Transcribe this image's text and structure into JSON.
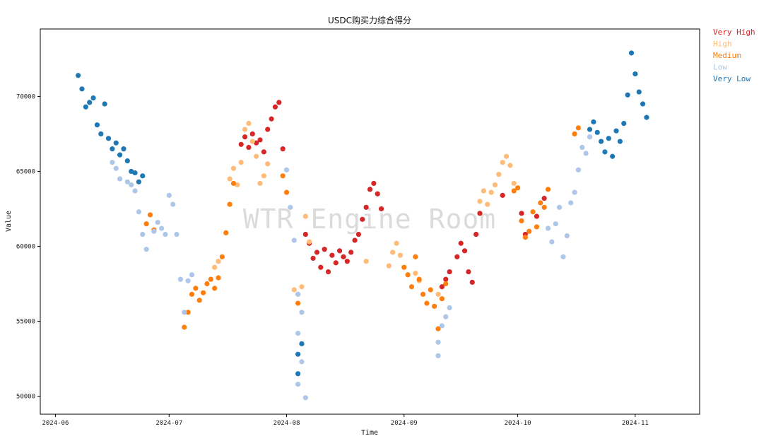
{
  "chart_data": {
    "type": "scatter",
    "title": "USDC购买力综合得分",
    "xlabel": "Time",
    "ylabel": "Value",
    "watermark": "WTR Engine Room",
    "xlim": [
      "2024-05-28",
      "2024-11-18"
    ],
    "ylim": [
      48800,
      74500
    ],
    "x_ticks": [
      "2024-06",
      "2024-07",
      "2024-08",
      "2024-09",
      "2024-10",
      "2024-11"
    ],
    "y_ticks": [
      50000,
      55000,
      60000,
      65000,
      70000
    ],
    "grid": false,
    "legend_position": "outside-top-right",
    "series": [
      {
        "name": "Very High",
        "color": "#d62728",
        "points": [
          [
            "2024-07-20",
            66800
          ],
          [
            "2024-07-21",
            67300
          ],
          [
            "2024-07-22",
            66600
          ],
          [
            "2024-07-23",
            67500
          ],
          [
            "2024-07-24",
            66900
          ],
          [
            "2024-07-25",
            67100
          ],
          [
            "2024-07-26",
            66300
          ],
          [
            "2024-07-27",
            67800
          ],
          [
            "2024-07-28",
            68500
          ],
          [
            "2024-07-29",
            69300
          ],
          [
            "2024-07-30",
            69600
          ],
          [
            "2024-07-31",
            66500
          ],
          [
            "2024-08-06",
            60800
          ],
          [
            "2024-08-07",
            60200
          ],
          [
            "2024-08-08",
            59200
          ],
          [
            "2024-08-09",
            59600
          ],
          [
            "2024-08-10",
            58600
          ],
          [
            "2024-08-11",
            59800
          ],
          [
            "2024-08-12",
            58300
          ],
          [
            "2024-08-13",
            59400
          ],
          [
            "2024-08-14",
            58900
          ],
          [
            "2024-08-15",
            59700
          ],
          [
            "2024-08-16",
            59300
          ],
          [
            "2024-08-17",
            59000
          ],
          [
            "2024-08-18",
            59600
          ],
          [
            "2024-08-19",
            60400
          ],
          [
            "2024-08-20",
            60800
          ],
          [
            "2024-08-21",
            61800
          ],
          [
            "2024-08-22",
            62600
          ],
          [
            "2024-08-23",
            63800
          ],
          [
            "2024-08-24",
            64200
          ],
          [
            "2024-08-25",
            63500
          ],
          [
            "2024-08-26",
            62500
          ],
          [
            "2024-09-11",
            57300
          ],
          [
            "2024-09-12",
            57800
          ],
          [
            "2024-09-13",
            58300
          ],
          [
            "2024-09-15",
            59300
          ],
          [
            "2024-09-16",
            60200
          ],
          [
            "2024-09-17",
            59700
          ],
          [
            "2024-09-18",
            58300
          ],
          [
            "2024-09-19",
            57600
          ],
          [
            "2024-09-20",
            60800
          ],
          [
            "2024-09-21",
            62200
          ],
          [
            "2024-09-27",
            63400
          ],
          [
            "2024-10-02",
            62200
          ],
          [
            "2024-10-03",
            60800
          ],
          [
            "2024-10-06",
            62000
          ],
          [
            "2024-10-08",
            63200
          ]
        ]
      },
      {
        "name": "High",
        "color": "#ffbb78",
        "points": [
          [
            "2024-07-13",
            58600
          ],
          [
            "2024-07-14",
            59000
          ],
          [
            "2024-07-17",
            64500
          ],
          [
            "2024-07-18",
            65200
          ],
          [
            "2024-07-19",
            64100
          ],
          [
            "2024-07-20",
            65600
          ],
          [
            "2024-07-21",
            67800
          ],
          [
            "2024-07-22",
            68200
          ],
          [
            "2024-07-23",
            67000
          ],
          [
            "2024-07-24",
            66000
          ],
          [
            "2024-07-25",
            64200
          ],
          [
            "2024-07-26",
            64700
          ],
          [
            "2024-07-27",
            65500
          ],
          [
            "2024-08-03",
            57100
          ],
          [
            "2024-08-04",
            56800
          ],
          [
            "2024-08-05",
            57300
          ],
          [
            "2024-08-06",
            62000
          ],
          [
            "2024-08-07",
            60300
          ],
          [
            "2024-08-22",
            59000
          ],
          [
            "2024-08-28",
            58700
          ],
          [
            "2024-08-29",
            59600
          ],
          [
            "2024-08-30",
            60200
          ],
          [
            "2024-08-31",
            59400
          ],
          [
            "2024-09-04",
            58200
          ],
          [
            "2024-09-05",
            57700
          ],
          [
            "2024-09-10",
            56800
          ],
          [
            "2024-09-21",
            63000
          ],
          [
            "2024-09-22",
            63700
          ],
          [
            "2024-09-23",
            62800
          ],
          [
            "2024-09-24",
            63600
          ],
          [
            "2024-09-25",
            64100
          ],
          [
            "2024-09-26",
            64800
          ],
          [
            "2024-09-27",
            65600
          ],
          [
            "2024-09-28",
            66000
          ],
          [
            "2024-09-29",
            65400
          ],
          [
            "2024-09-30",
            64200
          ]
        ]
      },
      {
        "name": "Medium",
        "color": "#ff7f0e",
        "points": [
          [
            "2024-06-25",
            61500
          ],
          [
            "2024-06-26",
            62100
          ],
          [
            "2024-06-27",
            61100
          ],
          [
            "2024-07-05",
            54600
          ],
          [
            "2024-07-06",
            55600
          ],
          [
            "2024-07-07",
            56800
          ],
          [
            "2024-07-08",
            57200
          ],
          [
            "2024-07-09",
            56400
          ],
          [
            "2024-07-10",
            56900
          ],
          [
            "2024-07-11",
            57500
          ],
          [
            "2024-07-12",
            57800
          ],
          [
            "2024-07-13",
            57200
          ],
          [
            "2024-07-14",
            57900
          ],
          [
            "2024-07-15",
            59300
          ],
          [
            "2024-07-16",
            60900
          ],
          [
            "2024-07-17",
            62800
          ],
          [
            "2024-07-18",
            64200
          ],
          [
            "2024-07-31",
            64700
          ],
          [
            "2024-08-01",
            63600
          ],
          [
            "2024-08-04",
            56200
          ],
          [
            "2024-09-01",
            58600
          ],
          [
            "2024-09-02",
            58100
          ],
          [
            "2024-09-03",
            57300
          ],
          [
            "2024-09-04",
            59300
          ],
          [
            "2024-09-05",
            57800
          ],
          [
            "2024-09-06",
            56800
          ],
          [
            "2024-09-07",
            56200
          ],
          [
            "2024-09-08",
            57100
          ],
          [
            "2024-09-09",
            56000
          ],
          [
            "2024-09-10",
            54500
          ],
          [
            "2024-09-11",
            56500
          ],
          [
            "2024-09-12",
            57500
          ],
          [
            "2024-09-30",
            63700
          ],
          [
            "2024-10-01",
            63900
          ],
          [
            "2024-10-02",
            61700
          ],
          [
            "2024-10-03",
            60600
          ],
          [
            "2024-10-04",
            61000
          ],
          [
            "2024-10-05",
            62300
          ],
          [
            "2024-10-06",
            61300
          ],
          [
            "2024-10-07",
            62900
          ],
          [
            "2024-10-08",
            62600
          ],
          [
            "2024-10-09",
            63800
          ],
          [
            "2024-10-16",
            67500
          ],
          [
            "2024-10-17",
            67900
          ]
        ]
      },
      {
        "name": "Low",
        "color": "#aec7e8",
        "points": [
          [
            "2024-06-16",
            65600
          ],
          [
            "2024-06-17",
            65200
          ],
          [
            "2024-06-18",
            64500
          ],
          [
            "2024-06-20",
            64300
          ],
          [
            "2024-06-21",
            64100
          ],
          [
            "2024-06-22",
            63700
          ],
          [
            "2024-06-23",
            62300
          ],
          [
            "2024-06-24",
            60800
          ],
          [
            "2024-06-25",
            59800
          ],
          [
            "2024-06-27",
            61000
          ],
          [
            "2024-06-28",
            61600
          ],
          [
            "2024-06-29",
            61200
          ],
          [
            "2024-06-30",
            60800
          ],
          [
            "2024-07-01",
            63400
          ],
          [
            "2024-07-02",
            62800
          ],
          [
            "2024-07-03",
            60800
          ],
          [
            "2024-07-04",
            57800
          ],
          [
            "2024-07-05",
            55600
          ],
          [
            "2024-07-06",
            57700
          ],
          [
            "2024-07-07",
            58100
          ],
          [
            "2024-08-01",
            65100
          ],
          [
            "2024-08-02",
            62600
          ],
          [
            "2024-08-03",
            60400
          ],
          [
            "2024-08-04",
            56800
          ],
          [
            "2024-08-04",
            54200
          ],
          [
            "2024-08-04",
            50800
          ],
          [
            "2024-08-05",
            55600
          ],
          [
            "2024-08-05",
            52300
          ],
          [
            "2024-08-06",
            49900
          ],
          [
            "2024-09-10",
            53600
          ],
          [
            "2024-09-11",
            54700
          ],
          [
            "2024-09-12",
            55300
          ],
          [
            "2024-09-13",
            55900
          ],
          [
            "2024-09-10",
            52700
          ],
          [
            "2024-10-09",
            61200
          ],
          [
            "2024-10-10",
            60300
          ],
          [
            "2024-10-11",
            61500
          ],
          [
            "2024-10-12",
            62600
          ],
          [
            "2024-10-13",
            59300
          ],
          [
            "2024-10-14",
            60700
          ],
          [
            "2024-10-15",
            62900
          ],
          [
            "2024-10-16",
            63600
          ],
          [
            "2024-10-17",
            65100
          ],
          [
            "2024-10-18",
            66600
          ],
          [
            "2024-10-19",
            66200
          ],
          [
            "2024-10-20",
            67300
          ]
        ]
      },
      {
        "name": "Very Low",
        "color": "#1f77b4",
        "points": [
          [
            "2024-06-07",
            71400
          ],
          [
            "2024-06-08",
            70500
          ],
          [
            "2024-06-09",
            69300
          ],
          [
            "2024-06-10",
            69600
          ],
          [
            "2024-06-11",
            69900
          ],
          [
            "2024-06-12",
            68100
          ],
          [
            "2024-06-13",
            67500
          ],
          [
            "2024-06-14",
            69500
          ],
          [
            "2024-06-15",
            67200
          ],
          [
            "2024-06-16",
            66500
          ],
          [
            "2024-06-17",
            66900
          ],
          [
            "2024-06-18",
            66100
          ],
          [
            "2024-06-19",
            66500
          ],
          [
            "2024-06-20",
            65700
          ],
          [
            "2024-06-21",
            65000
          ],
          [
            "2024-06-22",
            64900
          ],
          [
            "2024-06-23",
            64300
          ],
          [
            "2024-06-24",
            64700
          ],
          [
            "2024-08-04",
            52800
          ],
          [
            "2024-08-04",
            51500
          ],
          [
            "2024-08-05",
            53500
          ],
          [
            "2024-10-20",
            67800
          ],
          [
            "2024-10-21",
            68300
          ],
          [
            "2024-10-22",
            67600
          ],
          [
            "2024-10-23",
            67000
          ],
          [
            "2024-10-24",
            66300
          ],
          [
            "2024-10-25",
            67200
          ],
          [
            "2024-10-26",
            66000
          ],
          [
            "2024-10-27",
            67700
          ],
          [
            "2024-10-28",
            67000
          ],
          [
            "2024-10-29",
            68200
          ],
          [
            "2024-10-30",
            70100
          ],
          [
            "2024-10-31",
            72900
          ],
          [
            "2024-11-01",
            71500
          ],
          [
            "2024-11-02",
            70300
          ],
          [
            "2024-11-03",
            69500
          ],
          [
            "2024-11-04",
            68600
          ]
        ]
      }
    ]
  }
}
